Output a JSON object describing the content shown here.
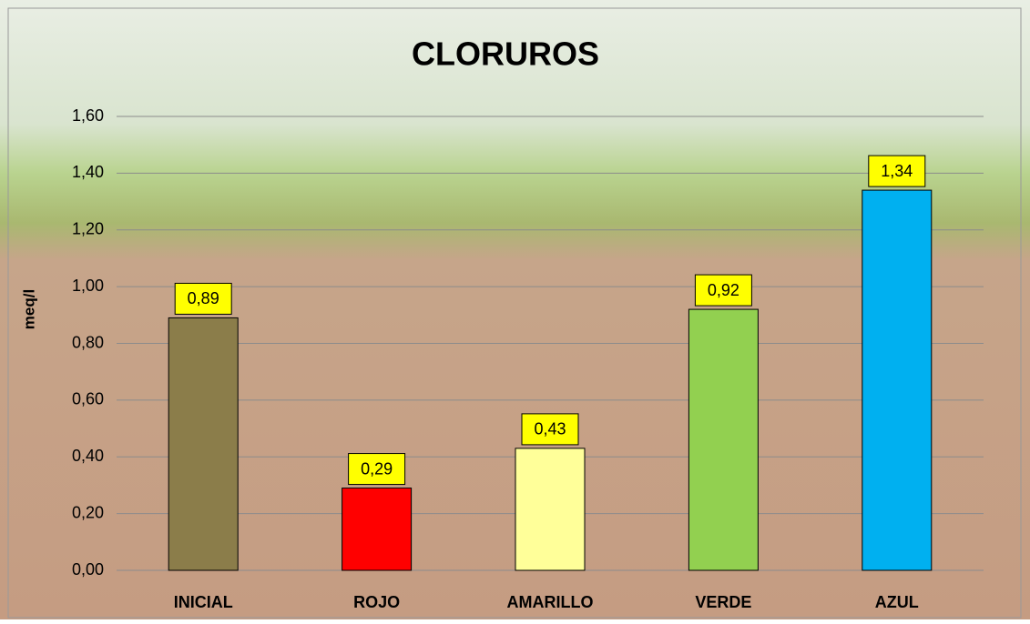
{
  "chart_data": {
    "type": "bar",
    "title": "CLORUROS",
    "y_label": "meq/l",
    "categories": [
      "INICIAL",
      "ROJO",
      "AMARILLO",
      "VERDE",
      "AZUL"
    ],
    "values": [
      0.89,
      0.29,
      0.43,
      0.92,
      1.34
    ],
    "value_labels": [
      "0,89",
      "0,29",
      "0,43",
      "0,92",
      "1,34"
    ],
    "colors": [
      "#8b7d4a",
      "#ff0000",
      "#ffff99",
      "#92d050",
      "#00b0f0"
    ],
    "ylim": [
      0,
      1.6
    ],
    "yticks": [
      {
        "value": 0,
        "label": "0,00"
      },
      {
        "value": 0.2,
        "label": "0,20"
      },
      {
        "value": 0.4,
        "label": "0,40"
      },
      {
        "value": 0.6,
        "label": "0,60"
      },
      {
        "value": 0.8,
        "label": "0,80"
      },
      {
        "value": 1.0,
        "label": "1,00"
      },
      {
        "value": 1.2,
        "label": "1,20"
      },
      {
        "value": 1.4,
        "label": "1,40"
      },
      {
        "value": 1.6,
        "label": "1,60"
      }
    ],
    "grid": true
  }
}
